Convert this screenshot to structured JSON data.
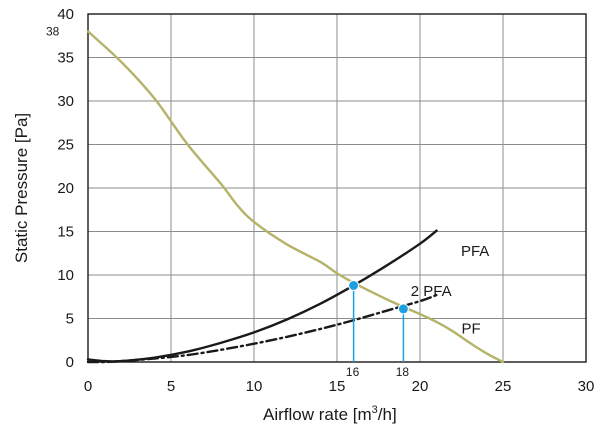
{
  "chart_data": {
    "type": "line",
    "xlabel": "Airflow rate [m",
    "xlabel_sup": "3",
    "xlabel_suffix": "/h]",
    "ylabel": "Static Pressure [Pa]",
    "xlim": [
      0,
      30
    ],
    "ylim": [
      0,
      40
    ],
    "x_ticks": [
      0,
      5,
      10,
      15,
      20,
      25,
      30
    ],
    "y_ticks": [
      0,
      5,
      10,
      15,
      20,
      25,
      30,
      35,
      40
    ],
    "grid": true,
    "annotations": {
      "y_max_value": "38",
      "operating_points": [
        {
          "label": "16",
          "x": 16.0,
          "y": 8.8
        },
        {
          "label": "18",
          "x": 19.0,
          "y": 6.1
        }
      ]
    },
    "series": [
      {
        "name": "PF",
        "color": "#b5b36a",
        "style": "solid",
        "x": [
          0,
          2,
          4,
          6,
          8,
          9,
          10,
          12,
          14,
          15,
          16,
          18,
          20,
          21,
          22,
          23,
          24,
          25
        ],
        "y": [
          38,
          34.5,
          30.3,
          25.0,
          20.5,
          18.0,
          16.1,
          13.5,
          11.5,
          10.2,
          9.1,
          7.2,
          5.5,
          4.6,
          3.5,
          2.2,
          1.0,
          0.0
        ]
      },
      {
        "name": "PFA",
        "color": "#1a1a1a",
        "style": "solid",
        "x": [
          0,
          1,
          2,
          4,
          6,
          8,
          10,
          12,
          14,
          16,
          18,
          20,
          21
        ],
        "y": [
          0.3,
          0.1,
          0.1,
          0.5,
          1.2,
          2.2,
          3.4,
          4.9,
          6.7,
          8.8,
          11.1,
          13.6,
          15.1
        ]
      },
      {
        "name": "2 PFA",
        "color": "#1a1a1a",
        "style": "dashdot",
        "x": [
          0,
          1,
          2,
          4,
          6,
          8,
          10,
          12,
          14,
          16,
          18,
          20,
          21
        ],
        "y": [
          0.0,
          0.0,
          0.1,
          0.4,
          0.8,
          1.4,
          2.1,
          2.9,
          3.8,
          4.8,
          5.9,
          7.0,
          7.7
        ]
      }
    ],
    "marker_color": "#1ba1e2",
    "dropline_color": "#1ba1e2"
  }
}
